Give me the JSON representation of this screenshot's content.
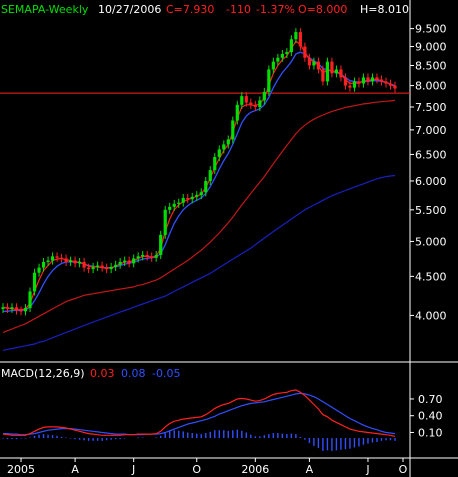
{
  "header": {
    "title": "SEMAPA-Weekly",
    "date": "10/27/2006",
    "close": "C=7.930",
    "change": "-110",
    "change_pct": "-1.37%",
    "open": "O=8.000",
    "high": "H=8.010"
  },
  "macd_header": {
    "label": "MACD(12,26,9)",
    "macd": "0.03",
    "signal": "0.08",
    "hist": "-0.05"
  },
  "colors": {
    "background": "#000000",
    "title": "#00e000",
    "text": "#ffffff",
    "up": "#00e000",
    "down": "#ff2020",
    "ma_short": "#ff2020",
    "ma_mid": "#3050ff",
    "ma_long_red": "#c01818",
    "ma_long_blue": "#1820c0",
    "hline": "#ff2020",
    "macd": "#ff2020",
    "signal": "#3050ff",
    "hist": "#3050ff"
  },
  "chart_data": [
    {
      "type": "candlestick",
      "title": "SEMAPA-Weekly",
      "x_ticks": [
        "2005",
        "A",
        "J",
        "O",
        "2006",
        "A",
        "J",
        "O"
      ],
      "y_ticks": [
        "9.500",
        "9.000",
        "8.500",
        "8.000",
        "7.500",
        "7.000",
        "6.500",
        "6.000",
        "5.500",
        "5.000",
        "4.500",
        "4.000"
      ],
      "ylim": [
        3.55,
        9.75
      ],
      "y_scale": "log",
      "horizontal_line": 7.82,
      "close": [
        4.1,
        4.08,
        4.1,
        4.06,
        4.05,
        4.09,
        4.3,
        4.55,
        4.62,
        4.7,
        4.72,
        4.78,
        4.76,
        4.75,
        4.7,
        4.72,
        4.68,
        4.7,
        4.62,
        4.6,
        4.63,
        4.65,
        4.62,
        4.6,
        4.63,
        4.66,
        4.7,
        4.72,
        4.68,
        4.75,
        4.78,
        4.8,
        4.78,
        4.76,
        4.8,
        5.1,
        5.5,
        5.55,
        5.6,
        5.62,
        5.7,
        5.68,
        5.72,
        5.75,
        5.8,
        6.0,
        6.2,
        6.45,
        6.6,
        6.7,
        6.8,
        7.2,
        7.55,
        7.75,
        7.6,
        7.55,
        7.5,
        7.65,
        7.85,
        8.4,
        8.6,
        8.7,
        8.8,
        8.85,
        9.2,
        9.4,
        9.0,
        8.7,
        8.5,
        8.6,
        8.4,
        8.1,
        8.6,
        8.3,
        8.4,
        8.2,
        8.0,
        7.95,
        8.1,
        8.05,
        8.2,
        8.1,
        8.2,
        8.15,
        8.1,
        8.05,
        8.0,
        7.93
      ],
      "ma_short": [
        4.1,
        4.09,
        4.08,
        4.07,
        4.07,
        4.08,
        4.15,
        4.3,
        4.45,
        4.58,
        4.65,
        4.72,
        4.74,
        4.75,
        4.73,
        4.72,
        4.7,
        4.7,
        4.67,
        4.64,
        4.63,
        4.63,
        4.62,
        4.61,
        4.62,
        4.64,
        4.67,
        4.7,
        4.7,
        4.72,
        4.75,
        4.78,
        4.78,
        4.77,
        4.78,
        4.9,
        5.15,
        5.35,
        5.5,
        5.58,
        5.64,
        5.67,
        5.7,
        5.73,
        5.77,
        5.88,
        6.05,
        6.25,
        6.42,
        6.58,
        6.7,
        6.95,
        7.25,
        7.5,
        7.55,
        7.55,
        7.53,
        7.58,
        7.7,
        8.0,
        8.3,
        8.5,
        8.65,
        8.75,
        8.95,
        9.15,
        9.05,
        8.85,
        8.65,
        8.6,
        8.5,
        8.3,
        8.4,
        8.35,
        8.35,
        8.28,
        8.15,
        8.05,
        8.06,
        8.06,
        8.12,
        8.12,
        8.15,
        8.15,
        8.12,
        8.08,
        8.03,
        7.97
      ],
      "ma_mid": [
        4.05,
        4.05,
        4.06,
        4.06,
        4.06,
        4.07,
        4.1,
        4.18,
        4.28,
        4.4,
        4.5,
        4.58,
        4.64,
        4.68,
        4.7,
        4.7,
        4.7,
        4.69,
        4.67,
        4.65,
        4.64,
        4.63,
        4.62,
        4.62,
        4.62,
        4.63,
        4.65,
        4.67,
        4.68,
        4.7,
        4.72,
        4.74,
        4.75,
        4.76,
        4.77,
        4.82,
        4.95,
        5.12,
        5.28,
        5.4,
        5.5,
        5.57,
        5.62,
        5.66,
        5.7,
        5.78,
        5.9,
        6.05,
        6.22,
        6.38,
        6.52,
        6.7,
        6.92,
        7.15,
        7.3,
        7.38,
        7.42,
        7.46,
        7.55,
        7.72,
        7.95,
        8.15,
        8.32,
        8.45,
        8.6,
        8.8,
        8.85,
        8.8,
        8.7,
        8.62,
        8.55,
        8.42,
        8.4,
        8.35,
        8.32,
        8.28,
        8.2,
        8.12,
        8.1,
        8.08,
        8.1,
        8.1,
        8.12,
        8.12,
        8.1,
        8.08,
        8.04,
        8.0
      ],
      "ma_long_red": [
        3.8,
        3.82,
        3.84,
        3.86,
        3.88,
        3.9,
        3.93,
        3.96,
        3.99,
        4.02,
        4.05,
        4.08,
        4.11,
        4.14,
        4.17,
        4.19,
        4.21,
        4.23,
        4.25,
        4.26,
        4.27,
        4.28,
        4.29,
        4.3,
        4.31,
        4.32,
        4.33,
        4.34,
        4.35,
        4.36,
        4.38,
        4.39,
        4.41,
        4.43,
        4.45,
        4.48,
        4.52,
        4.56,
        4.6,
        4.64,
        4.68,
        4.72,
        4.77,
        4.82,
        4.87,
        4.93,
        4.99,
        5.06,
        5.13,
        5.21,
        5.29,
        5.38,
        5.48,
        5.58,
        5.68,
        5.78,
        5.88,
        5.98,
        6.08,
        6.2,
        6.32,
        6.44,
        6.56,
        6.68,
        6.8,
        6.92,
        7.02,
        7.1,
        7.17,
        7.23,
        7.28,
        7.32,
        7.36,
        7.4,
        7.43,
        7.46,
        7.49,
        7.51,
        7.53,
        7.55,
        7.57,
        7.58,
        7.6,
        7.61,
        7.62,
        7.63,
        7.64,
        7.65
      ],
      "ma_long_blue": [
        3.6,
        3.61,
        3.62,
        3.63,
        3.64,
        3.65,
        3.66,
        3.67,
        3.69,
        3.7,
        3.72,
        3.74,
        3.76,
        3.78,
        3.8,
        3.82,
        3.84,
        3.86,
        3.88,
        3.9,
        3.92,
        3.94,
        3.96,
        3.98,
        4.0,
        4.02,
        4.04,
        4.06,
        4.08,
        4.1,
        4.12,
        4.14,
        4.16,
        4.18,
        4.2,
        4.22,
        4.24,
        4.27,
        4.3,
        4.33,
        4.36,
        4.39,
        4.42,
        4.45,
        4.48,
        4.51,
        4.54,
        4.58,
        4.62,
        4.66,
        4.7,
        4.74,
        4.78,
        4.82,
        4.86,
        4.9,
        4.95,
        5.0,
        5.05,
        5.1,
        5.15,
        5.2,
        5.25,
        5.3,
        5.35,
        5.4,
        5.45,
        5.5,
        5.54,
        5.58,
        5.62,
        5.66,
        5.7,
        5.74,
        5.77,
        5.8,
        5.83,
        5.86,
        5.89,
        5.92,
        5.95,
        5.98,
        6.01,
        6.04,
        6.06,
        6.08,
        6.09,
        6.1
      ]
    },
    {
      "type": "line",
      "title": "MACD(12,26,9)",
      "y_ticks": [
        "0.70",
        "0.40",
        "0.10"
      ],
      "ylim": [
        -0.25,
        0.95
      ],
      "series": [
        {
          "name": "MACD",
          "values": [
            0.07,
            0.06,
            0.05,
            0.05,
            0.05,
            0.05,
            0.08,
            0.12,
            0.16,
            0.19,
            0.2,
            0.2,
            0.2,
            0.19,
            0.18,
            0.16,
            0.14,
            0.12,
            0.1,
            0.08,
            0.07,
            0.06,
            0.05,
            0.05,
            0.05,
            0.05,
            0.05,
            0.06,
            0.06,
            0.06,
            0.07,
            0.07,
            0.07,
            0.07,
            0.08,
            0.12,
            0.2,
            0.26,
            0.3,
            0.32,
            0.34,
            0.35,
            0.36,
            0.37,
            0.38,
            0.42,
            0.47,
            0.53,
            0.57,
            0.6,
            0.62,
            0.66,
            0.7,
            0.71,
            0.7,
            0.68,
            0.66,
            0.67,
            0.7,
            0.74,
            0.78,
            0.8,
            0.81,
            0.82,
            0.85,
            0.86,
            0.82,
            0.76,
            0.68,
            0.6,
            0.52,
            0.42,
            0.38,
            0.32,
            0.28,
            0.24,
            0.2,
            0.16,
            0.14,
            0.12,
            0.11,
            0.1,
            0.09,
            0.08,
            0.07,
            0.06,
            0.05,
            0.03
          ]
        },
        {
          "name": "Signal",
          "values": [
            0.08,
            0.08,
            0.07,
            0.07,
            0.06,
            0.06,
            0.07,
            0.08,
            0.1,
            0.12,
            0.14,
            0.15,
            0.16,
            0.17,
            0.17,
            0.17,
            0.16,
            0.15,
            0.14,
            0.13,
            0.12,
            0.11,
            0.1,
            0.09,
            0.08,
            0.07,
            0.07,
            0.07,
            0.06,
            0.06,
            0.06,
            0.06,
            0.07,
            0.07,
            0.07,
            0.08,
            0.1,
            0.13,
            0.16,
            0.19,
            0.22,
            0.25,
            0.27,
            0.29,
            0.31,
            0.33,
            0.36,
            0.39,
            0.43,
            0.46,
            0.49,
            0.52,
            0.55,
            0.58,
            0.6,
            0.62,
            0.63,
            0.64,
            0.65,
            0.67,
            0.69,
            0.71,
            0.73,
            0.75,
            0.77,
            0.79,
            0.8,
            0.79,
            0.77,
            0.74,
            0.7,
            0.65,
            0.6,
            0.55,
            0.5,
            0.45,
            0.4,
            0.35,
            0.31,
            0.27,
            0.23,
            0.2,
            0.17,
            0.15,
            0.12,
            0.1,
            0.09,
            0.08
          ]
        }
      ]
    }
  ]
}
